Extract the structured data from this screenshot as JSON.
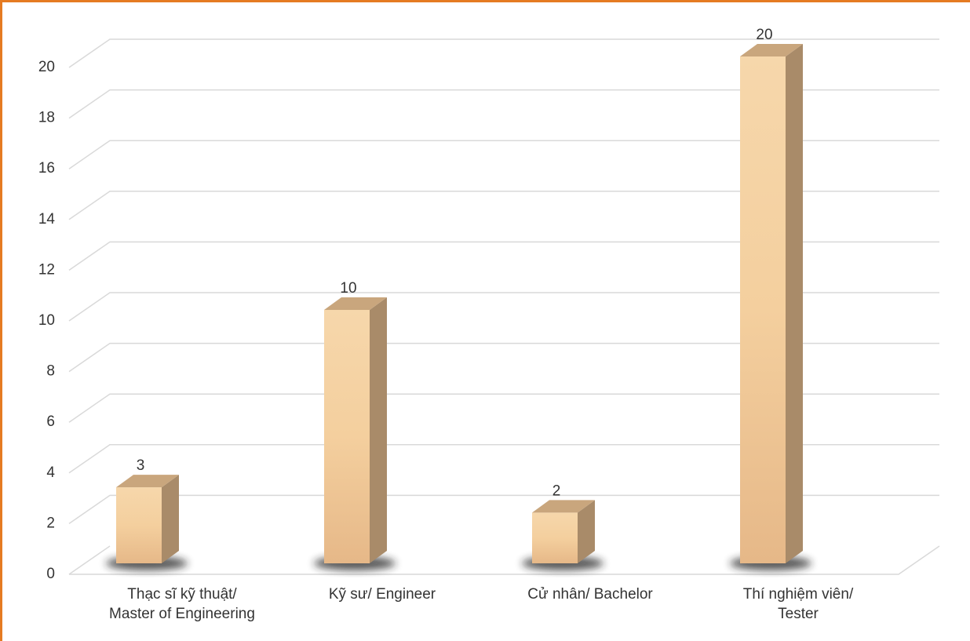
{
  "chart_data": {
    "type": "bar3d",
    "categories": [
      "Thạc sĩ kỹ thuật/\nMaster of Engineering",
      "Kỹ sư/ Engineer",
      "Cử nhân/ Bachelor",
      "Thí nghiệm viên/\nTester"
    ],
    "values": [
      3,
      10,
      2,
      20
    ],
    "color": "#f2cfa0",
    "ylim": [
      0,
      20
    ],
    "yticks": [
      0,
      2,
      4,
      6,
      8,
      10,
      12,
      14,
      16,
      18,
      20
    ],
    "grid": true
  }
}
